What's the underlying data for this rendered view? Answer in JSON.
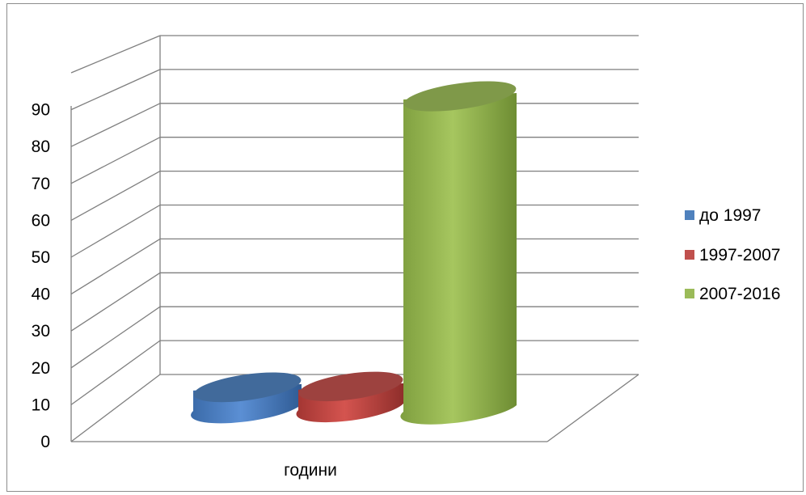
{
  "chart_data": {
    "type": "bar",
    "style": "3d-cylinder",
    "categories": [
      "години"
    ],
    "series": [
      {
        "name": "до 1997",
        "values": [
          6
        ],
        "color": "#4f81bd"
      },
      {
        "name": "1997-2007",
        "values": [
          6
        ],
        "color": "#c0504d"
      },
      {
        "name": "2007-2016",
        "values": [
          92
        ],
        "color": "#9bbb59"
      }
    ],
    "y_ticks": [
      0,
      10,
      20,
      30,
      40,
      50,
      60,
      70,
      80,
      90
    ],
    "ylim": [
      0,
      100
    ],
    "grid": true,
    "legend_position": "right"
  }
}
